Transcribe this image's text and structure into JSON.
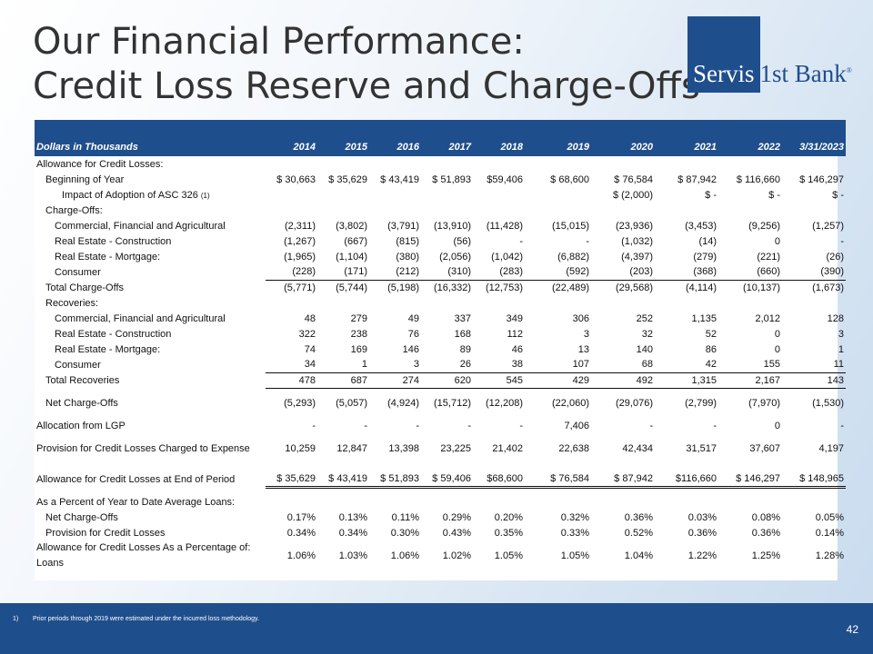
{
  "title": {
    "line1": "Our Financial Performance:",
    "line2": "Credit Loss Reserve and Charge-Offs"
  },
  "logo": {
    "word1": "Servis",
    "word2": "1st Bank",
    "reg": "®"
  },
  "table": {
    "header": [
      "Dollars in Thousands",
      "2014",
      "2015",
      "2016",
      "2017",
      "2018",
      "2019",
      "2020",
      "2021",
      "2022",
      "3/31/2023"
    ],
    "rows": [
      {
        "label": "Allowance for Credit Losses:",
        "indent": 0,
        "values": [
          "",
          "",
          "",
          "",
          "",
          "",
          "",
          "",
          "",
          ""
        ]
      },
      {
        "label": "Beginning of Year",
        "indent": 1,
        "values": [
          "$ 30,663",
          "$ 35,629",
          "$ 43,419",
          "$ 51,893",
          "$59,406",
          "$   68,600",
          "$   76,584",
          "$   87,942",
          "$ 116,660",
          "$  146,297"
        ]
      },
      {
        "label": "Impact of Adoption of ASC 326",
        "sup": "(1)",
        "indent": 3,
        "values": [
          "",
          "",
          "",
          "",
          "",
          "",
          "$   (2,000)",
          "$          -",
          "$          -",
          "$           -"
        ]
      },
      {
        "label": "Charge-Offs:",
        "indent": 1,
        "values": [
          "",
          "",
          "",
          "",
          "",
          "",
          "",
          "",
          "",
          ""
        ]
      },
      {
        "label": "Commercial, Financial and Agricultural",
        "indent": 2,
        "values": [
          "(2,311)",
          "(3,802)",
          "(3,791)",
          "(13,910)",
          "(11,428)",
          "(15,015)",
          "(23,936)",
          "(3,453)",
          "(9,256)",
          "(1,257)"
        ]
      },
      {
        "label": "Real Estate - Construction",
        "indent": 2,
        "values": [
          "(1,267)",
          "(667)",
          "(815)",
          "(56)",
          "-",
          "-",
          "(1,032)",
          "(14)",
          "0",
          "-"
        ]
      },
      {
        "label": "Real Estate - Mortgage:",
        "indent": 2,
        "values": [
          "(1,965)",
          "(1,104)",
          "(380)",
          "(2,056)",
          "(1,042)",
          "(6,882)",
          "(4,397)",
          "(279)",
          "(221)",
          "(26)"
        ]
      },
      {
        "label": "Consumer",
        "indent": 2,
        "values": [
          "(228)",
          "(171)",
          "(212)",
          "(310)",
          "(283)",
          "(592)",
          "(203)",
          "(368)",
          "(660)",
          "(390)"
        ]
      },
      {
        "label": "Total Charge-Offs",
        "indent": 1,
        "values": [
          "(5,771)",
          "(5,744)",
          "(5,198)",
          "(16,332)",
          "(12,753)",
          "(22,489)",
          "(29,568)",
          "(4,114)",
          "(10,137)",
          "(1,673)"
        ]
      },
      {
        "label": "Recoveries:",
        "indent": 1,
        "values": [
          "",
          "",
          "",
          "",
          "",
          "",
          "",
          "",
          "",
          ""
        ]
      },
      {
        "label": "Commercial, Financial and Agricultural",
        "indent": 2,
        "values": [
          "48",
          "279",
          "49",
          "337",
          "349",
          "306",
          "252",
          "1,135",
          "2,012",
          "128"
        ]
      },
      {
        "label": "Real Estate - Construction",
        "indent": 2,
        "values": [
          "322",
          "238",
          "76",
          "168",
          "112",
          "3",
          "32",
          "52",
          "0",
          "3"
        ]
      },
      {
        "label": "Real Estate - Mortgage:",
        "indent": 2,
        "values": [
          "74",
          "169",
          "146",
          "89",
          "46",
          "13",
          "140",
          "86",
          "0",
          "1"
        ]
      },
      {
        "label": "Consumer",
        "indent": 2,
        "values": [
          "34",
          "1",
          "3",
          "26",
          "38",
          "107",
          "68",
          "42",
          "155",
          "11"
        ]
      },
      {
        "label": "Total Recoveries",
        "indent": 1,
        "values": [
          "478",
          "687",
          "274",
          "620",
          "545",
          "429",
          "492",
          "1,315",
          "2,167",
          "143"
        ]
      },
      {
        "label": "Net Charge-Offs",
        "indent": 1,
        "values": [
          "(5,293)",
          "(5,057)",
          "(4,924)",
          "(15,712)",
          "(12,208)",
          "(22,060)",
          "(29,076)",
          "(2,799)",
          "(7,970)",
          "(1,530)"
        ]
      },
      {
        "label": "Allocation from LGP",
        "indent": 0,
        "values": [
          "-",
          "-",
          "-",
          "-",
          "-",
          "7,406",
          "-",
          "-",
          "0",
          "-"
        ]
      },
      {
        "label": "Provision for Credit Losses Charged to Expense",
        "indent": 0,
        "values": [
          "10,259",
          "12,847",
          "13,398",
          "23,225",
          "21,402",
          "22,638",
          "42,434",
          "31,517",
          "37,607",
          "4,197"
        ]
      },
      {
        "label": "Allowance for Credit Losses at End of Period",
        "indent": 0,
        "values": [
          "$ 35,629",
          "$ 43,419",
          "$ 51,893",
          "$ 59,406",
          "$68,600",
          "$   76,584",
          "$   87,942",
          "$116,660",
          "$ 146,297",
          "$  148,965"
        ]
      },
      {
        "label": "As a Percent of Year to Date Average Loans:",
        "indent": 0,
        "values": [
          "",
          "",
          "",
          "",
          "",
          "",
          "",
          "",
          "",
          ""
        ]
      },
      {
        "label": "Net Charge-Offs",
        "indent": 1,
        "values": [
          "0.17%",
          "0.13%",
          "0.11%",
          "0.29%",
          "0.20%",
          "0.32%",
          "0.36%",
          "0.03%",
          "0.08%",
          "0.05%"
        ]
      },
      {
        "label": "Provision for Credit Losses",
        "indent": 1,
        "values": [
          "0.34%",
          "0.34%",
          "0.30%",
          "0.43%",
          "0.35%",
          "0.33%",
          "0.52%",
          "0.36%",
          "0.36%",
          "0.14%"
        ]
      },
      {
        "label": "Allowance for Credit Losses As a Percentage of: Loans",
        "indent": 0,
        "values": [
          "1.06%",
          "1.03%",
          "1.06%",
          "1.02%",
          "1.05%",
          "1.05%",
          "1.04%",
          "1.22%",
          "1.25%",
          "1.28%"
        ]
      }
    ]
  },
  "footer": {
    "note_num": "1)",
    "note_text": "Prior periods through 2019 were estimated  under the incurred loss methodology.",
    "page": "42"
  }
}
